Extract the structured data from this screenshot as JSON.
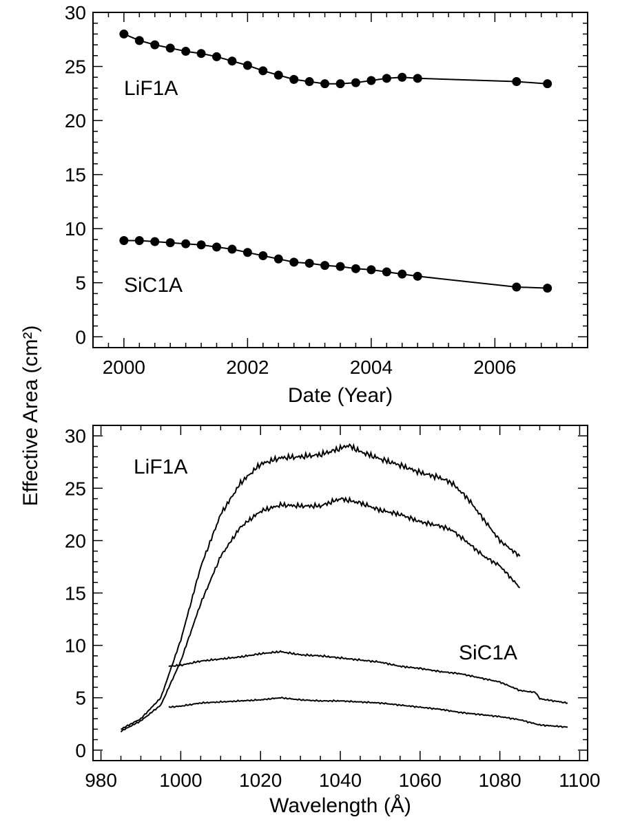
{
  "shared_ylabel": "Effective Area (cm²)",
  "chart_data": [
    {
      "type": "line",
      "title": "",
      "xlabel": "Date (Year)",
      "ylabel": "Effective Area (cm²)",
      "xlim": [
        1999.5,
        2007.5
      ],
      "ylim": [
        -1,
        30
      ],
      "xticks": [
        2000,
        2002,
        2004,
        2006
      ],
      "yticks": [
        0,
        5,
        10,
        15,
        20,
        25,
        30
      ],
      "grid": false,
      "markers": "filled-circle",
      "annotations": [
        {
          "text": "LiF1A"
        },
        {
          "text": "SiC1A"
        }
      ],
      "series": [
        {
          "x": [
            2000.0,
            2000.25,
            2000.5,
            2000.75,
            2001.0,
            2001.25,
            2001.5,
            2001.75,
            2002.0,
            2002.25,
            2002.5,
            2002.75,
            2003.0,
            2003.25,
            2003.5,
            2003.75,
            2004.0,
            2004.25,
            2004.5,
            2004.75,
            2006.35,
            2006.85
          ],
          "y": [
            28.0,
            27.4,
            27.0,
            26.7,
            26.4,
            26.2,
            25.9,
            25.5,
            25.1,
            24.6,
            24.2,
            23.8,
            23.6,
            23.4,
            23.4,
            23.5,
            23.7,
            23.9,
            24.0,
            23.9,
            23.6,
            23.4
          ]
        },
        {
          "x": [
            2000.0,
            2000.25,
            2000.5,
            2000.75,
            2001.0,
            2001.25,
            2001.5,
            2001.75,
            2002.0,
            2002.25,
            2002.5,
            2002.75,
            2003.0,
            2003.25,
            2003.5,
            2003.75,
            2004.0,
            2004.25,
            2004.5,
            2004.75,
            2006.35,
            2006.85
          ],
          "y": [
            8.9,
            8.9,
            8.8,
            8.7,
            8.6,
            8.5,
            8.3,
            8.1,
            7.8,
            7.5,
            7.2,
            6.9,
            6.8,
            6.6,
            6.5,
            6.3,
            6.2,
            6.0,
            5.8,
            5.6,
            4.6,
            4.5
          ]
        }
      ]
    },
    {
      "type": "line",
      "title": "",
      "xlabel": "Wavelength (Å)",
      "ylabel": "Effective Area (cm²)",
      "xlim": [
        978,
        1102
      ],
      "ylim": [
        -1,
        31
      ],
      "xticks": [
        980,
        1000,
        1020,
        1040,
        1060,
        1080,
        1100
      ],
      "yticks": [
        0,
        5,
        10,
        15,
        20,
        25,
        30
      ],
      "grid": false,
      "annotations": [
        {
          "text": "LiF1A"
        },
        {
          "text": "SiC1A"
        }
      ],
      "series": [
        {
          "x": [
            985,
            990,
            995,
            1000,
            1005,
            1010,
            1015,
            1020,
            1025,
            1030,
            1035,
            1040,
            1042,
            1045,
            1050,
            1055,
            1060,
            1065,
            1068,
            1072,
            1076,
            1080,
            1085
          ],
          "y": [
            2.0,
            3.0,
            5.0,
            10.5,
            17.5,
            22.5,
            25.5,
            27.3,
            27.9,
            28.0,
            28.2,
            28.8,
            29.1,
            28.5,
            27.8,
            27.2,
            26.5,
            26.0,
            25.5,
            24.0,
            22.0,
            20.0,
            18.5
          ]
        },
        {
          "x": [
            985,
            990,
            995,
            1000,
            1005,
            1010,
            1015,
            1020,
            1025,
            1030,
            1035,
            1040,
            1045,
            1050,
            1055,
            1060,
            1065,
            1068,
            1072,
            1076,
            1080,
            1085
          ],
          "y": [
            1.8,
            2.8,
            4.3,
            8.5,
            14.0,
            18.5,
            21.3,
            22.8,
            23.4,
            23.3,
            23.3,
            24.0,
            23.6,
            22.9,
            22.5,
            21.8,
            21.4,
            21.0,
            19.8,
            18.5,
            17.6,
            15.5
          ]
        },
        {
          "x": [
            997,
            1000,
            1005,
            1010,
            1015,
            1020,
            1025,
            1030,
            1035,
            1040,
            1045,
            1050,
            1055,
            1060,
            1065,
            1070,
            1075,
            1080,
            1085,
            1089,
            1090,
            1097
          ],
          "y": [
            8.0,
            8.1,
            8.5,
            8.7,
            8.9,
            9.2,
            9.4,
            9.1,
            9.0,
            8.8,
            8.6,
            8.4,
            8.0,
            7.8,
            7.5,
            7.3,
            6.9,
            6.5,
            5.7,
            5.5,
            4.9,
            4.5
          ]
        },
        {
          "x": [
            997,
            1000,
            1005,
            1010,
            1015,
            1020,
            1025,
            1030,
            1035,
            1040,
            1045,
            1050,
            1055,
            1060,
            1065,
            1070,
            1075,
            1080,
            1085,
            1090,
            1097
          ],
          "y": [
            4.1,
            4.2,
            4.5,
            4.6,
            4.7,
            4.8,
            5.0,
            4.8,
            4.7,
            4.7,
            4.6,
            4.5,
            4.3,
            4.1,
            3.9,
            3.6,
            3.4,
            3.2,
            2.9,
            2.4,
            2.2
          ]
        }
      ]
    }
  ]
}
